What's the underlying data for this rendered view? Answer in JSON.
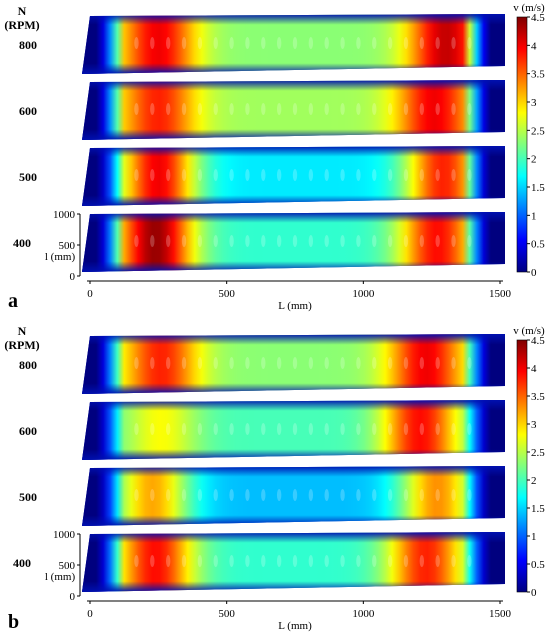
{
  "colormap": [
    "#00007f",
    "#0000ff",
    "#007fff",
    "#00ffff",
    "#7fff7f",
    "#ffff00",
    "#ff7f00",
    "#ff0000",
    "#7f0000"
  ],
  "chart_data": [
    {
      "type": "heatmap",
      "panel_label": "a",
      "ylabel_rows": "N (RPM)",
      "xlabel": "L (mm)",
      "ylabel": "l (mm)",
      "x_ticks": [
        "0",
        "500",
        "1000",
        "1500"
      ],
      "y_ticks": [
        "0",
        "500",
        "1000"
      ],
      "xlim": [
        0,
        1500
      ],
      "ylim": [
        0,
        1000
      ],
      "rows": [
        {
          "rpm": "800",
          "hotspots": [
            {
              "x": 270,
              "v": 4.0
            },
            {
              "x": 1290,
              "v": 4.2
            }
          ],
          "base_v": 2.3
        },
        {
          "rpm": "600",
          "hotspots": [
            {
              "x": 270,
              "v": 3.8
            },
            {
              "x": 1250,
              "v": 4.0
            }
          ],
          "base_v": 2.4
        },
        {
          "rpm": "500",
          "hotspots": [
            {
              "x": 270,
              "v": 4.0
            },
            {
              "x": 1280,
              "v": 3.8
            }
          ],
          "base_v": 1.6
        },
        {
          "rpm": "400",
          "hotspots": [
            {
              "x": 260,
              "v": 4.4
            },
            {
              "x": 1260,
              "v": 3.9
            }
          ],
          "base_v": 1.9
        }
      ],
      "colorbar": {
        "title": "v (m/s)",
        "ticks": [
          "0",
          "0.5",
          "1",
          "1.5",
          "2",
          "2.5",
          "3",
          "3.5",
          "4",
          "4.5"
        ],
        "range": [
          0,
          4.5
        ]
      }
    },
    {
      "type": "heatmap",
      "panel_label": "b",
      "ylabel_rows": "N (RPM)",
      "xlabel": "L (mm)",
      "ylabel": "l (mm)",
      "x_ticks": [
        "0",
        "500",
        "1000",
        "1500"
      ],
      "y_ticks": [
        "0",
        "500",
        "1000"
      ],
      "xlim": [
        0,
        1500
      ],
      "ylim": [
        0,
        1000
      ],
      "rows": [
        {
          "rpm": "800",
          "hotspots": [
            {
              "x": 280,
              "v": 3.8
            },
            {
              "x": 1220,
              "v": 4.0
            }
          ],
          "base_v": 2.3
        },
        {
          "rpm": "600",
          "hotspots": [
            {
              "x": 280,
              "v": 2.8
            },
            {
              "x": 1200,
              "v": 3.9
            }
          ],
          "base_v": 2.0
        },
        {
          "rpm": "500",
          "hotspots": [
            {
              "x": 250,
              "v": 3.2
            },
            {
              "x": 1260,
              "v": 3.3
            }
          ],
          "base_v": 1.4
        },
        {
          "rpm": "400",
          "hotspots": [
            {
              "x": 260,
              "v": 3.9
            },
            {
              "x": 1220,
              "v": 3.8
            }
          ],
          "base_v": 1.9
        }
      ],
      "colorbar": {
        "title": "v (m/s)",
        "ticks": [
          "0",
          "0.5",
          "1",
          "1.5",
          "2",
          "2.5",
          "3",
          "3.5",
          "4",
          "4.5"
        ],
        "range": [
          0,
          4.5
        ]
      }
    }
  ]
}
